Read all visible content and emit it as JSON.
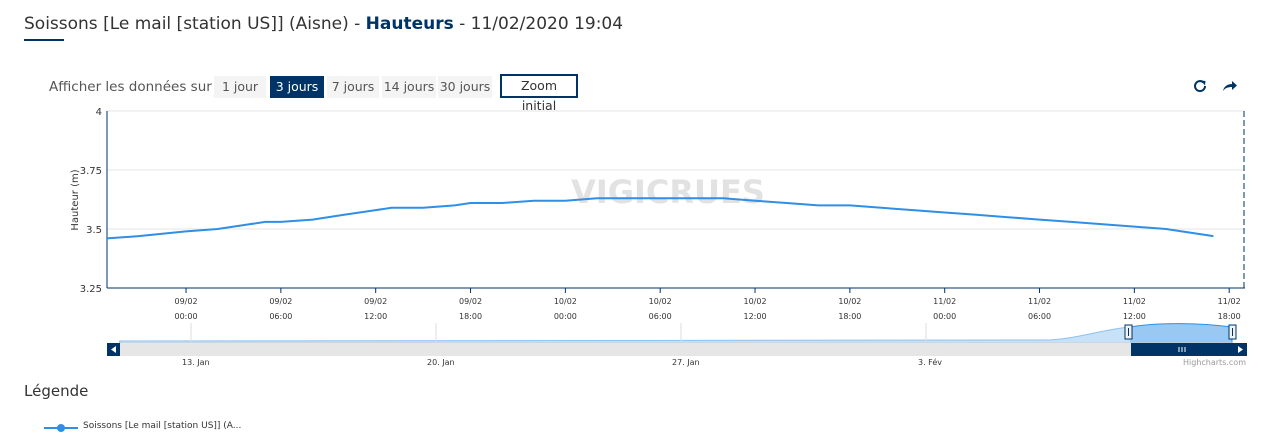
{
  "header": {
    "title_prefix": "Soissons [Le mail [station US]] (Aisne) - ",
    "title_bold": "Hauteurs",
    "title_suffix": " - 11/02/2020 19:04"
  },
  "range_selector": {
    "label": "Afficher les données sur :",
    "buttons": [
      "1 jour",
      "3 jours",
      "7 jours",
      "14 jours",
      "30 jours"
    ],
    "active": "3 jours",
    "zoom_label": "Zoom initial"
  },
  "toolbar": {
    "refresh_icon": "refresh-icon",
    "share_icon": "share-arrow-icon"
  },
  "watermark": "VIGICRUES",
  "legend": {
    "title": "Légende",
    "series_label": "Soissons [Le mail [station US]] (A..."
  },
  "credits": "Highcharts.com",
  "navigator": {
    "labels": [
      "13. Jan",
      "20. Jan",
      "27. Jan",
      "3. Fév"
    ]
  },
  "colors": {
    "series": "#2f8fe6",
    "brand": "#003366",
    "grid": "#e6e6e6"
  },
  "chart_data": {
    "type": "line",
    "ylabel": "Hauteur (m)",
    "ylim": [
      3.25,
      4
    ],
    "yticks": [
      "3.25",
      "3.5",
      "3.75",
      "4"
    ],
    "xlim": [
      "2020-02-08T19:00",
      "2020-02-11T19:00"
    ],
    "xticks": [
      {
        "date": "09/02",
        "time": "00:00",
        "t": "2020-02-09T00:00"
      },
      {
        "date": "09/02",
        "time": "06:00",
        "t": "2020-02-09T06:00"
      },
      {
        "date": "09/02",
        "time": "12:00",
        "t": "2020-02-09T12:00"
      },
      {
        "date": "09/02",
        "time": "18:00",
        "t": "2020-02-09T18:00"
      },
      {
        "date": "10/02",
        "time": "00:00",
        "t": "2020-02-10T00:00"
      },
      {
        "date": "10/02",
        "time": "06:00",
        "t": "2020-02-10T06:00"
      },
      {
        "date": "10/02",
        "time": "12:00",
        "t": "2020-02-10T12:00"
      },
      {
        "date": "10/02",
        "time": "18:00",
        "t": "2020-02-10T18:00"
      },
      {
        "date": "11/02",
        "time": "00:00",
        "t": "2020-02-11T00:00"
      },
      {
        "date": "11/02",
        "time": "06:00",
        "t": "2020-02-11T06:00"
      },
      {
        "date": "11/02",
        "time": "12:00",
        "t": "2020-02-11T12:00"
      },
      {
        "date": "11/02",
        "time": "18:00",
        "t": "2020-02-11T18:00"
      }
    ],
    "series": [
      {
        "name": "Soissons [Le mail [station US]] (A...",
        "points": [
          [
            "2020-02-08T19:00",
            3.46
          ],
          [
            "2020-02-08T21:00",
            3.47
          ],
          [
            "2020-02-09T00:00",
            3.49
          ],
          [
            "2020-02-09T02:00",
            3.5
          ],
          [
            "2020-02-09T04:00",
            3.52
          ],
          [
            "2020-02-09T05:00",
            3.53
          ],
          [
            "2020-02-09T06:00",
            3.53
          ],
          [
            "2020-02-09T08:00",
            3.54
          ],
          [
            "2020-02-09T10:00",
            3.56
          ],
          [
            "2020-02-09T12:00",
            3.58
          ],
          [
            "2020-02-09T13:00",
            3.59
          ],
          [
            "2020-02-09T15:00",
            3.59
          ],
          [
            "2020-02-09T17:00",
            3.6
          ],
          [
            "2020-02-09T18:00",
            3.61
          ],
          [
            "2020-02-09T20:00",
            3.61
          ],
          [
            "2020-02-09T22:00",
            3.62
          ],
          [
            "2020-02-10T00:00",
            3.62
          ],
          [
            "2020-02-10T02:00",
            3.63
          ],
          [
            "2020-02-10T04:00",
            3.63
          ],
          [
            "2020-02-10T05:00",
            3.63
          ],
          [
            "2020-02-10T06:00",
            3.63
          ],
          [
            "2020-02-10T08:00",
            3.63
          ],
          [
            "2020-02-10T10:00",
            3.63
          ],
          [
            "2020-02-10T12:00",
            3.62
          ],
          [
            "2020-02-10T14:00",
            3.61
          ],
          [
            "2020-02-10T16:00",
            3.6
          ],
          [
            "2020-02-10T18:00",
            3.6
          ],
          [
            "2020-02-10T20:00",
            3.59
          ],
          [
            "2020-02-10T22:00",
            3.58
          ],
          [
            "2020-02-11T00:00",
            3.57
          ],
          [
            "2020-02-11T02:00",
            3.56
          ],
          [
            "2020-02-11T04:00",
            3.55
          ],
          [
            "2020-02-11T06:00",
            3.54
          ],
          [
            "2020-02-11T08:00",
            3.53
          ],
          [
            "2020-02-11T10:00",
            3.52
          ],
          [
            "2020-02-11T12:00",
            3.51
          ],
          [
            "2020-02-11T14:00",
            3.5
          ],
          [
            "2020-02-11T16:00",
            3.48
          ],
          [
            "2020-02-11T17:00",
            3.47
          ]
        ]
      }
    ]
  }
}
